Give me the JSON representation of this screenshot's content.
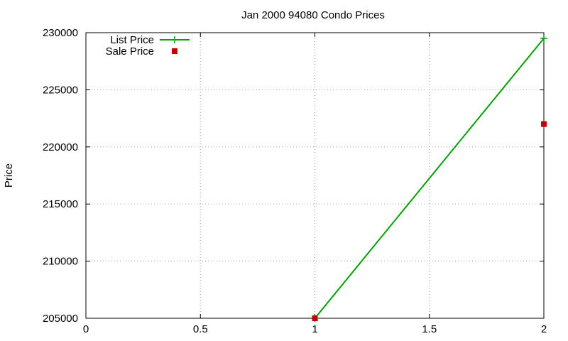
{
  "chart_data": {
    "type": "line",
    "title": "Jan 2000 94080 Condo Prices",
    "xlabel": "",
    "ylabel": "Price",
    "xlim": [
      0,
      2
    ],
    "ylim": [
      205000,
      230000
    ],
    "x_ticks": [
      "0",
      "0.5",
      "1",
      "1.5",
      "2"
    ],
    "y_ticks": [
      "205000",
      "210000",
      "215000",
      "220000",
      "225000",
      "230000"
    ],
    "grid": true,
    "legend_position": "top-left",
    "series": [
      {
        "name": "List Price",
        "style": "linespoints",
        "marker": "plus",
        "color": "#00a000",
        "points": [
          [
            1,
            205000
          ],
          [
            2,
            229500
          ]
        ]
      },
      {
        "name": "Sale Price",
        "style": "points",
        "marker": "square",
        "color": "#c00000",
        "points": [
          [
            1,
            205000
          ],
          [
            2,
            222000
          ]
        ]
      }
    ]
  }
}
